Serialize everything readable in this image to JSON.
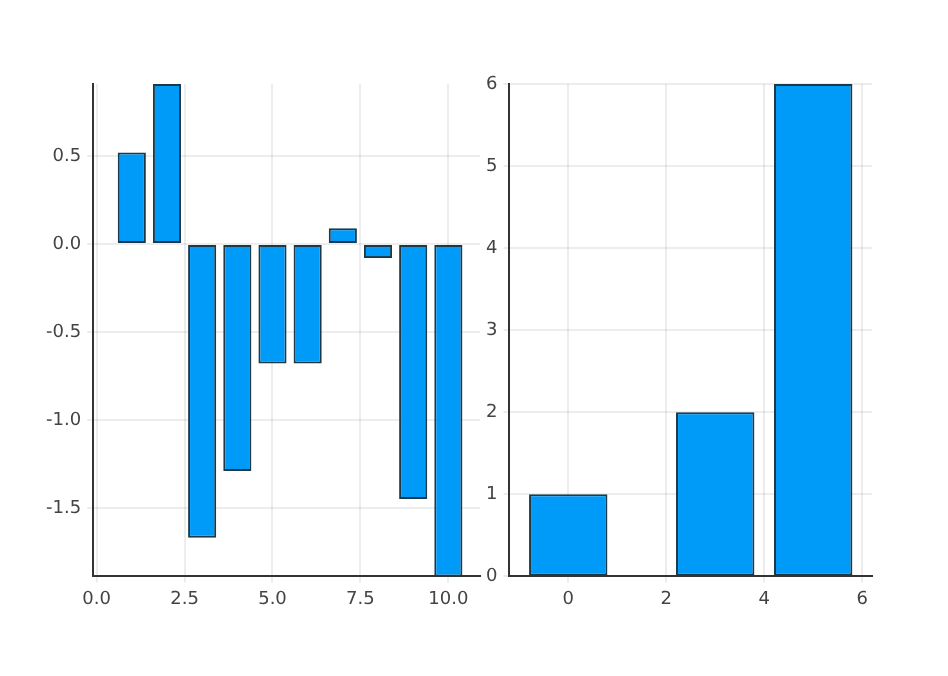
{
  "chart_data": [
    {
      "type": "bar",
      "x": [
        1,
        2,
        3,
        4,
        5,
        6,
        7,
        8,
        9,
        10
      ],
      "values": [
        0.52,
        0.91,
        -1.67,
        -1.29,
        -0.68,
        -0.68,
        0.09,
        -0.08,
        -1.45,
        -1.89
      ],
      "color": "#009af9",
      "xlim": [
        -0.1,
        10.9
      ],
      "xticks": [
        {
          "value": 0,
          "label": "0.0"
        },
        2.5,
        {
          "value": 5,
          "label": "5.0"
        },
        7.5,
        {
          "value": 10,
          "label": "10.0"
        }
      ],
      "ylim": [
        -1.89,
        0.91
      ],
      "yticks": [
        -1.5,
        {
          "value": -1,
          "label": "-1.0"
        },
        -0.5,
        {
          "value": 0,
          "label": "0.0"
        },
        0.5
      ],
      "grid": true
    },
    {
      "type": "bar",
      "x": [
        0,
        3,
        5
      ],
      "values": [
        1,
        2,
        6
      ],
      "color": "#009af9",
      "xlim": [
        -1.2,
        6.2
      ],
      "xticks": [
        0,
        2,
        4,
        6
      ],
      "ylim": [
        0,
        6
      ],
      "yticks": [
        0,
        1,
        2,
        3,
        4,
        5,
        6
      ],
      "grid": true
    }
  ]
}
